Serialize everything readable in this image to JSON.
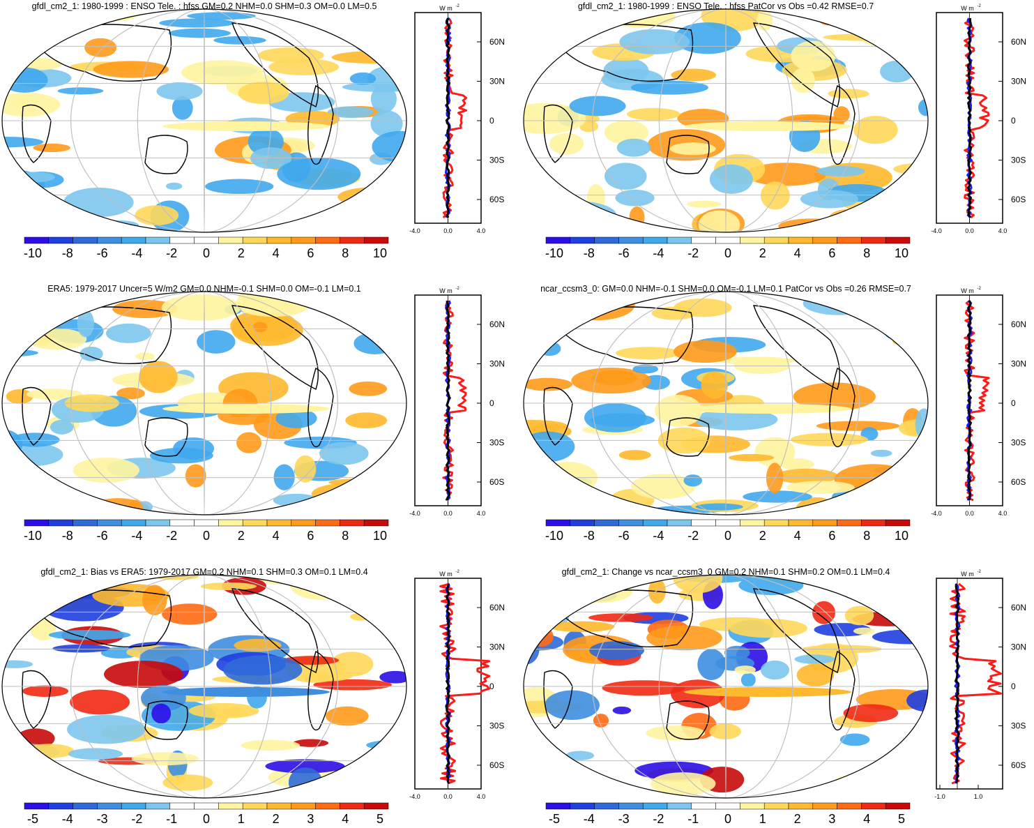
{
  "panels": [
    {
      "title": "gfdl_cm2_1: 1980-1999 : ENSO Tele. : hfss GM=0.2 NHM=0.0 SHM=0.3 OM=0.0 LM=0.5",
      "colorbar_labels": [
        "-10",
        "-8",
        "-6",
        "-4",
        "-2",
        "0",
        "2",
        "4",
        "6",
        "8",
        "10"
      ],
      "zonal_ticks": [
        "-4.0",
        "0.0",
        "4.0"
      ],
      "has_blue": true
    },
    {
      "title": "gfdl_cm2_1: 1980-1999 : ENSO Tele. : hfss PatCor vs Obs =0.42 RMSE=0.7",
      "colorbar_labels": [
        "-10",
        "-8",
        "-6",
        "-4",
        "-2",
        "0",
        "2",
        "4",
        "6",
        "8",
        "10"
      ],
      "zonal_ticks": [
        "-4.0",
        "0.0",
        "4.0"
      ],
      "has_blue": true
    },
    {
      "title": "ERA5: 1979-2017 Uncer=5 W/m2 GM=0.0 NHM=-0.1 SHM=0.0 OM=-0.1 LM=0.1",
      "colorbar_labels": [
        "-10",
        "-8",
        "-6",
        "-4",
        "-2",
        "0",
        "2",
        "4",
        "6",
        "8",
        "10"
      ],
      "zonal_ticks": [
        "-4.0",
        "0.0",
        "4.0"
      ],
      "has_blue": true
    },
    {
      "title": "ncar_ccsm3_0: GM=0.0 NHM=-0.1 SHM=0.0 OM=-0.1 LM=0.1 PatCor vs Obs =0.26 RMSE=0.7",
      "colorbar_labels": [
        "-10",
        "-8",
        "-6",
        "-4",
        "-2",
        "0",
        "2",
        "4",
        "6",
        "8",
        "10"
      ],
      "zonal_ticks": [
        "-4.0",
        "0.0",
        "4.0"
      ],
      "has_blue": true
    },
    {
      "title": "gfdl_cm2_1: Bias vs ERA5: 1979-2017 GM=0.2 NHM=0.1 SHM=0.3 OM=0.1 LM=0.4",
      "colorbar_labels": [
        "-5",
        "-4",
        "-3",
        "-2",
        "-1",
        "0",
        "1",
        "2",
        "3",
        "4",
        "5"
      ],
      "zonal_ticks": [
        "-4.0",
        "0.0",
        "4.0"
      ],
      "has_blue": true
    },
    {
      "title": "gfdl_cm2_1: Change vs ncar_ccsm3_0 GM=0.2 NHM=0.1 SHM=0.2 OM=0.1 LM=0.4",
      "colorbar_labels": [
        "-5",
        "-4",
        "-3",
        "-2",
        "-1",
        "0",
        "1",
        "2",
        "3",
        "4",
        "5"
      ],
      "zonal_ticks": [
        "-1.0",
        "1.0"
      ],
      "has_blue": true
    }
  ],
  "zonal_units": "W m",
  "zonal_units_exp": "-2",
  "lat_labels": [
    "60N",
    "30N",
    "0",
    "30S",
    "60S"
  ],
  "colors": {
    "palette": [
      "#2b0fe6",
      "#1f3fe0",
      "#2f6ad8",
      "#3f8ee0",
      "#3fa9ec",
      "#7cc6ee",
      "#ffffff",
      "#ffffff",
      "#fff4a0",
      "#ffd85a",
      "#ffb92e",
      "#ff9a1a",
      "#ff6a14",
      "#ef2a14",
      "#c80a0a"
    ],
    "red_line": "#ff1a1a",
    "blue_line": "#1a1aff",
    "black_line": "#000000",
    "grid": "#bfbfbf",
    "coast": "#000000"
  }
}
